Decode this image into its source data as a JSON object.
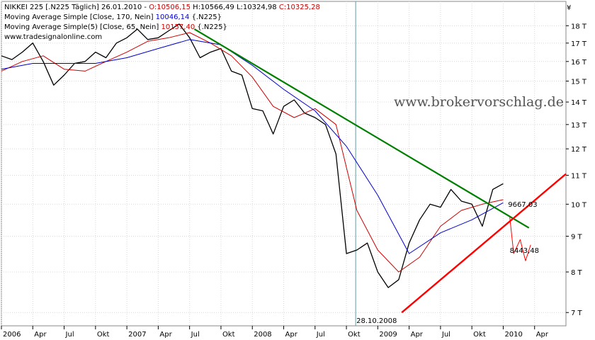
{
  "chart_data": {
    "type": "line",
    "title": "",
    "xlabel": "",
    "ylabel": "",
    "legend": [
      {
        "name_prefix": "NIKKEI 225 [.N225  Täglich] 26.01.2010 - ",
        "o": "O:10506,15",
        "h": "H:10566,49",
        "l": "L:10324,98",
        "c": "C:10325,28",
        "o_color": "#cc0000",
        "c_color": "#cc0000"
      },
      {
        "name": "Moving Average Simple [Close, 170, Nein]",
        "value": "10046,14",
        "value_color": "#0000cc",
        "suffix": "{.N225}"
      },
      {
        "name": "Moving Average Simple(5) [Close, 65, Nein]",
        "value": "10157,40",
        "value_color": "#cc0000",
        "suffix": "{.N225}"
      },
      {
        "name": "www.tradesignalonline.com"
      }
    ],
    "watermark": "www.brokervorschlag.de",
    "currency_symbol": "¥",
    "y_ticks": [
      "18 T",
      "17 T",
      "16 T",
      "15 T",
      "14 T",
      "13 T",
      "12 T",
      "11 T",
      "10 T",
      "9 T",
      "8 T",
      "7 T"
    ],
    "y_tick_values": [
      18000,
      17000,
      16000,
      15000,
      14000,
      13000,
      12000,
      11000,
      10000,
      9000,
      8000,
      7000
    ],
    "x_ticks": [
      "2006",
      "Apr",
      "Jul",
      "Okt",
      "2007",
      "Apr",
      "Jul",
      "Okt",
      "2008",
      "Apr",
      "Jul",
      "Okt",
      "2009",
      "Apr",
      "Jul",
      "Okt",
      "2010",
      "Apr"
    ],
    "x_tick_dates": [
      "2006-01",
      "2006-04",
      "2006-07",
      "2006-10",
      "2007-01",
      "2007-04",
      "2007-07",
      "2007-10",
      "2008-01",
      "2008-04",
      "2008-07",
      "2008-10",
      "2009-01",
      "2009-04",
      "2009-07",
      "2009-10",
      "2010-01",
      "2010-04"
    ],
    "x_range": [
      "2006-01",
      "2010-07"
    ],
    "yscale": "log",
    "ylim": [
      6700,
      19500
    ],
    "grid": true,
    "marker": {
      "date": "2008-10-28",
      "label": "28.10.2008"
    },
    "annotations": [
      {
        "text": "9667,03",
        "color": "#008000"
      },
      {
        "text": "8443,48",
        "color": "#cc0000"
      }
    ],
    "series": [
      {
        "name": "NIKKEI 225",
        "color": "#000000",
        "x": [
          "2006-01",
          "2006-02",
          "2006-03",
          "2006-04",
          "2006-05",
          "2006-06",
          "2006-07",
          "2006-08",
          "2006-09",
          "2006-10",
          "2006-11",
          "2006-12",
          "2007-01",
          "2007-02",
          "2007-03",
          "2007-04",
          "2007-05",
          "2007-06",
          "2007-07",
          "2007-08",
          "2007-09",
          "2007-10",
          "2007-11",
          "2007-12",
          "2008-01",
          "2008-02",
          "2008-03",
          "2008-04",
          "2008-05",
          "2008-06",
          "2008-07",
          "2008-08",
          "2008-09",
          "2008-10",
          "2008-11",
          "2008-12",
          "2009-01",
          "2009-02",
          "2009-03",
          "2009-04",
          "2009-05",
          "2009-06",
          "2009-07",
          "2009-08",
          "2009-09",
          "2009-10",
          "2009-11",
          "2009-12",
          "2010-01"
        ],
        "y": [
          16300,
          16100,
          16500,
          17000,
          16000,
          14800,
          15300,
          15900,
          16000,
          16500,
          16200,
          17000,
          17300,
          17800,
          17200,
          17300,
          17700,
          18100,
          17300,
          16200,
          16500,
          16700,
          15500,
          15300,
          13700,
          13600,
          12600,
          13800,
          14100,
          13500,
          13300,
          13000,
          11800,
          8500,
          8600,
          8800,
          8000,
          7600,
          7800,
          8800,
          9500,
          10000,
          9900,
          10500,
          10100,
          10000,
          9300,
          10500,
          10700
        ]
      },
      {
        "name": "Moving Average Simple(5) [Close, 65, Nein]",
        "color": "#cc0000",
        "x": [
          "2006-01",
          "2006-03",
          "2006-05",
          "2006-07",
          "2006-09",
          "2006-11",
          "2007-01",
          "2007-03",
          "2007-05",
          "2007-07",
          "2007-09",
          "2007-11",
          "2008-01",
          "2008-03",
          "2008-05",
          "2008-07",
          "2008-09",
          "2008-11",
          "2009-01",
          "2009-03",
          "2009-05",
          "2009-07",
          "2009-09",
          "2009-11",
          "2010-01"
        ],
        "y": [
          15500,
          16000,
          16300,
          15600,
          15500,
          16000,
          16500,
          17100,
          17300,
          17600,
          17000,
          16300,
          15200,
          13800,
          13300,
          13700,
          13000,
          9800,
          8600,
          8000,
          8400,
          9300,
          9800,
          10000,
          10150
        ]
      },
      {
        "name": "Moving Average Simple [Close, 170, Nein]",
        "color": "#0000cc",
        "x": [
          "2006-01",
          "2006-04",
          "2006-07",
          "2006-10",
          "2007-01",
          "2007-04",
          "2007-07",
          "2007-10",
          "2008-01",
          "2008-04",
          "2008-07",
          "2008-10",
          "2009-01",
          "2009-04",
          "2009-07",
          "2009-10",
          "2010-01"
        ],
        "y": [
          15600,
          15900,
          15900,
          15900,
          16200,
          16700,
          17200,
          16900,
          15800,
          14600,
          13600,
          12100,
          10300,
          8500,
          9100,
          9500,
          10050
        ]
      },
      {
        "name": "Trendlinie",
        "color": "#008000",
        "x": [
          "2007-07-15",
          "2010-03-15"
        ],
        "y": [
          17800,
          9250
        ]
      },
      {
        "name": "Unterstützung",
        "color": "#ff0000",
        "x": [
          "2009-03-10",
          "2010-07-01"
        ],
        "y": [
          7000,
          11050
        ]
      },
      {
        "name": "Projektion",
        "color": "#ff0000",
        "x": [
          "2010-01-20",
          "2010-02-01",
          "2010-02-20",
          "2010-03-05",
          "2010-03-20"
        ],
        "y": [
          9600,
          8500,
          8900,
          8300,
          8750
        ]
      }
    ]
  }
}
